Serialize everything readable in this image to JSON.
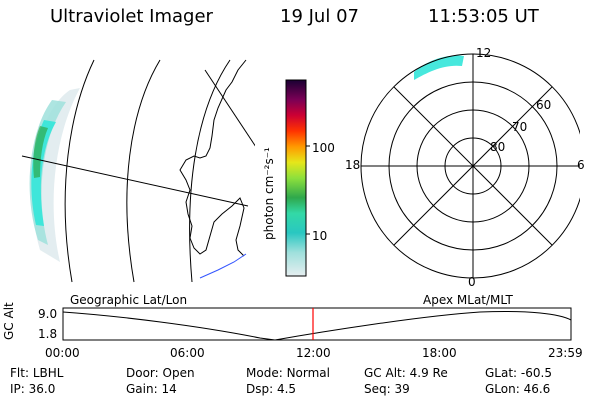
{
  "header": {
    "title": "Ultraviolet Imager",
    "date": "19 Jul 07",
    "time": "11:53:05 UT"
  },
  "colorbar": {
    "unit_label": "photon cm⁻²s⁻¹",
    "ticks": [
      "100",
      "10"
    ]
  },
  "polar": {
    "mlt_labels": {
      "top": "12",
      "left": "18",
      "right": "6",
      "bottom": "0"
    },
    "lat_labels": [
      "60",
      "70",
      "80"
    ]
  },
  "timeline": {
    "left_title": "Geographic Lat/Lon",
    "right_title": "Apex MLat/MLT",
    "y_label": "GC Alt",
    "y_ticks": [
      "9.0",
      "1.8"
    ],
    "x_ticks": [
      "00:00",
      "06:00",
      "12:00",
      "18:00",
      "23:59"
    ]
  },
  "info": {
    "row1": [
      {
        "label": "Flt:",
        "value": "LBHL"
      },
      {
        "label": "Door:",
        "value": "Open"
      },
      {
        "label": "Mode:",
        "value": "Normal"
      },
      {
        "label": "GC Alt:",
        "value": "4.9 Re"
      },
      {
        "label": "GLat:",
        "value": "-60.5"
      }
    ],
    "row2": [
      {
        "label": "IP:",
        "value": "36.0"
      },
      {
        "label": "Gain:",
        "value": "14"
      },
      {
        "label": "Dsp:",
        "value": "4.5"
      },
      {
        "label": "Seq:",
        "value": "39"
      },
      {
        "label": "GLon:",
        "value": "46.6"
      }
    ]
  },
  "colors": {
    "cyan": "#33e6d9",
    "teal": "#29c7c1",
    "green": "#2fa84c",
    "marker_red": "#ff0000",
    "coast_blue": "#3355ff"
  }
}
